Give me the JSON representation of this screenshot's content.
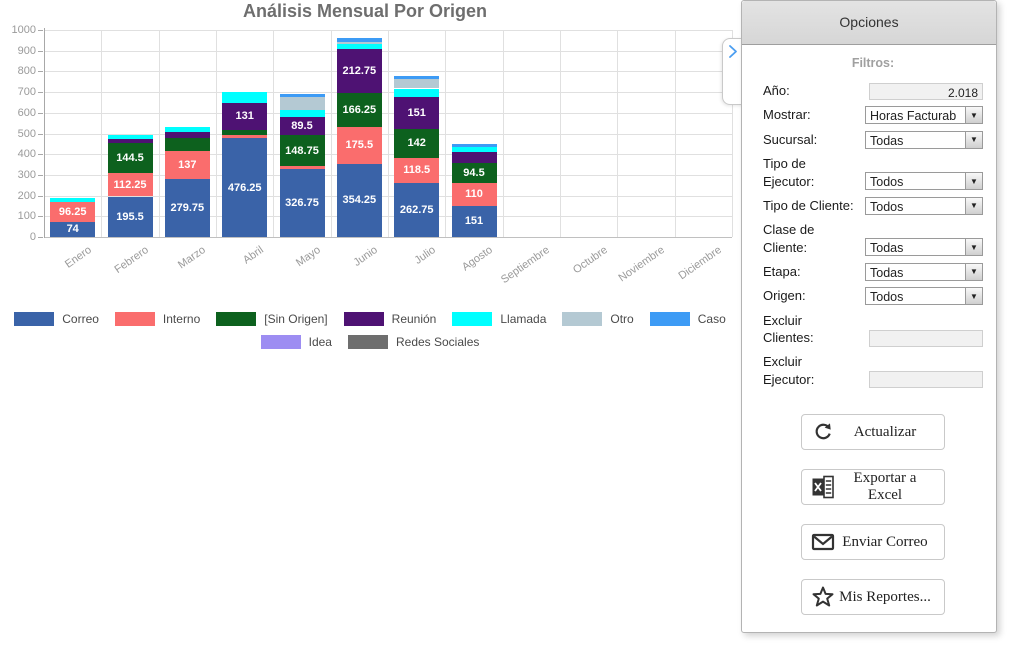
{
  "chart_data": {
    "type": "bar",
    "stacked": true,
    "title": "Análisis Mensual Por Origen",
    "categories": [
      "Enero",
      "Febrero",
      "Marzo",
      "Abril",
      "Mayo",
      "Junio",
      "Julio",
      "Agosto",
      "Septiembre",
      "Octubre",
      "Noviembre",
      "Diciembre"
    ],
    "series": [
      {
        "name": "Correo",
        "color": "#3a63a8",
        "values": [
          74,
          195.5,
          279.75,
          476.25,
          326.75,
          354.25,
          262.75,
          151,
          0,
          0,
          0,
          0
        ]
      },
      {
        "name": "Interno",
        "color": "#fa6d6d",
        "values": [
          96.25,
          112.25,
          137,
          16.25,
          16,
          175.5,
          118.5,
          110,
          0,
          0,
          0,
          0
        ]
      },
      {
        "name": "[Sin Origen]",
        "color": "#0d611e",
        "values": [
          0,
          144.5,
          63,
          24.5,
          148.75,
          166.25,
          142,
          94.5,
          0,
          0,
          0,
          0
        ]
      },
      {
        "name": "Reunión",
        "color": "#4e1273",
        "values": [
          0,
          20,
          26,
          131,
          89.5,
          212.75,
          151,
          57,
          0,
          0,
          0,
          0
        ]
      },
      {
        "name": "Llamada",
        "color": "#00ffff",
        "values": [
          20,
          20,
          25,
          55,
          32,
          25,
          43,
          22,
          0,
          0,
          0,
          0
        ]
      },
      {
        "name": "Otro",
        "color": "#b4c9d3",
        "values": [
          0,
          0,
          0,
          0,
          64,
          10,
          45,
          0,
          0,
          0,
          0,
          0
        ]
      },
      {
        "name": "Caso",
        "color": "#3d9bf5",
        "values": [
          0,
          0,
          0,
          0,
          13,
          20,
          16,
          14,
          0,
          0,
          0,
          0
        ]
      },
      {
        "name": "Idea",
        "color": "#9d8df2",
        "values": [
          0,
          0,
          0,
          0,
          0,
          0,
          0,
          0,
          0,
          0,
          0,
          0
        ]
      },
      {
        "name": "Redes Sociales",
        "color": "#6e6e6e",
        "values": [
          0,
          0,
          0,
          0,
          0,
          0,
          0,
          0,
          0,
          0,
          0,
          0
        ]
      }
    ],
    "ylim": [
      0,
      1000
    ],
    "ytick_step": 100,
    "yticks": [
      "0",
      "100",
      "200",
      "300",
      "400",
      "500",
      "600",
      "700",
      "800",
      "900",
      "1000"
    ],
    "label_min_value": 68,
    "grid": true,
    "legend_position": "bottom",
    "legend_row_split": 7
  },
  "panel": {
    "title": "Opciones",
    "filters_heading": "Filtros:",
    "collapse_handle_icon": "chevron-right-icon",
    "fields": [
      {
        "id": "ano",
        "label_lines": [
          "Año:"
        ],
        "control": "input",
        "value": "2.018",
        "align": "right"
      },
      {
        "id": "mostrar",
        "label_lines": [
          "Mostrar:"
        ],
        "control": "select",
        "value": "Horas Facturab"
      },
      {
        "id": "sucursal",
        "label_lines": [
          "Sucursal:"
        ],
        "control": "select",
        "value": "Todas"
      },
      {
        "id": "tipo-de-ejecutor",
        "label_lines": [
          "Tipo de",
          "Ejecutor:"
        ],
        "control": "select",
        "value": "Todos"
      },
      {
        "id": "tipo-de-cliente",
        "label_lines": [
          "Tipo de Cliente:"
        ],
        "control": "select",
        "value": "Todos"
      },
      {
        "id": "clase-de-cliente",
        "label_lines": [
          "Clase de",
          "Cliente:"
        ],
        "control": "select",
        "value": "Todas"
      },
      {
        "id": "etapa",
        "label_lines": [
          "Etapa:"
        ],
        "control": "select",
        "value": "Todas"
      },
      {
        "id": "origen",
        "label_lines": [
          "Origen:"
        ],
        "control": "select",
        "value": "Todos"
      },
      {
        "id": "excluir-clientes",
        "label_lines": [
          "Excluir",
          "Clientes:"
        ],
        "control": "input",
        "value": "",
        "align": "left"
      },
      {
        "id": "excluir-ejecutor",
        "label_lines": [
          "Excluir",
          "Ejecutor:"
        ],
        "control": "input",
        "value": "",
        "align": "left"
      }
    ],
    "buttons": [
      {
        "id": "actualizar",
        "icon": "refresh-icon",
        "label": "Actualizar"
      },
      {
        "id": "exportar-excel",
        "icon": "excel-icon",
        "label": "Exportar a Excel"
      },
      {
        "id": "enviar-correo",
        "icon": "mail-icon",
        "label": "Enviar Correo"
      },
      {
        "id": "mis-reportes",
        "icon": "star-icon",
        "label": "Mis Reportes..."
      }
    ],
    "combo_arrow": "▼"
  }
}
